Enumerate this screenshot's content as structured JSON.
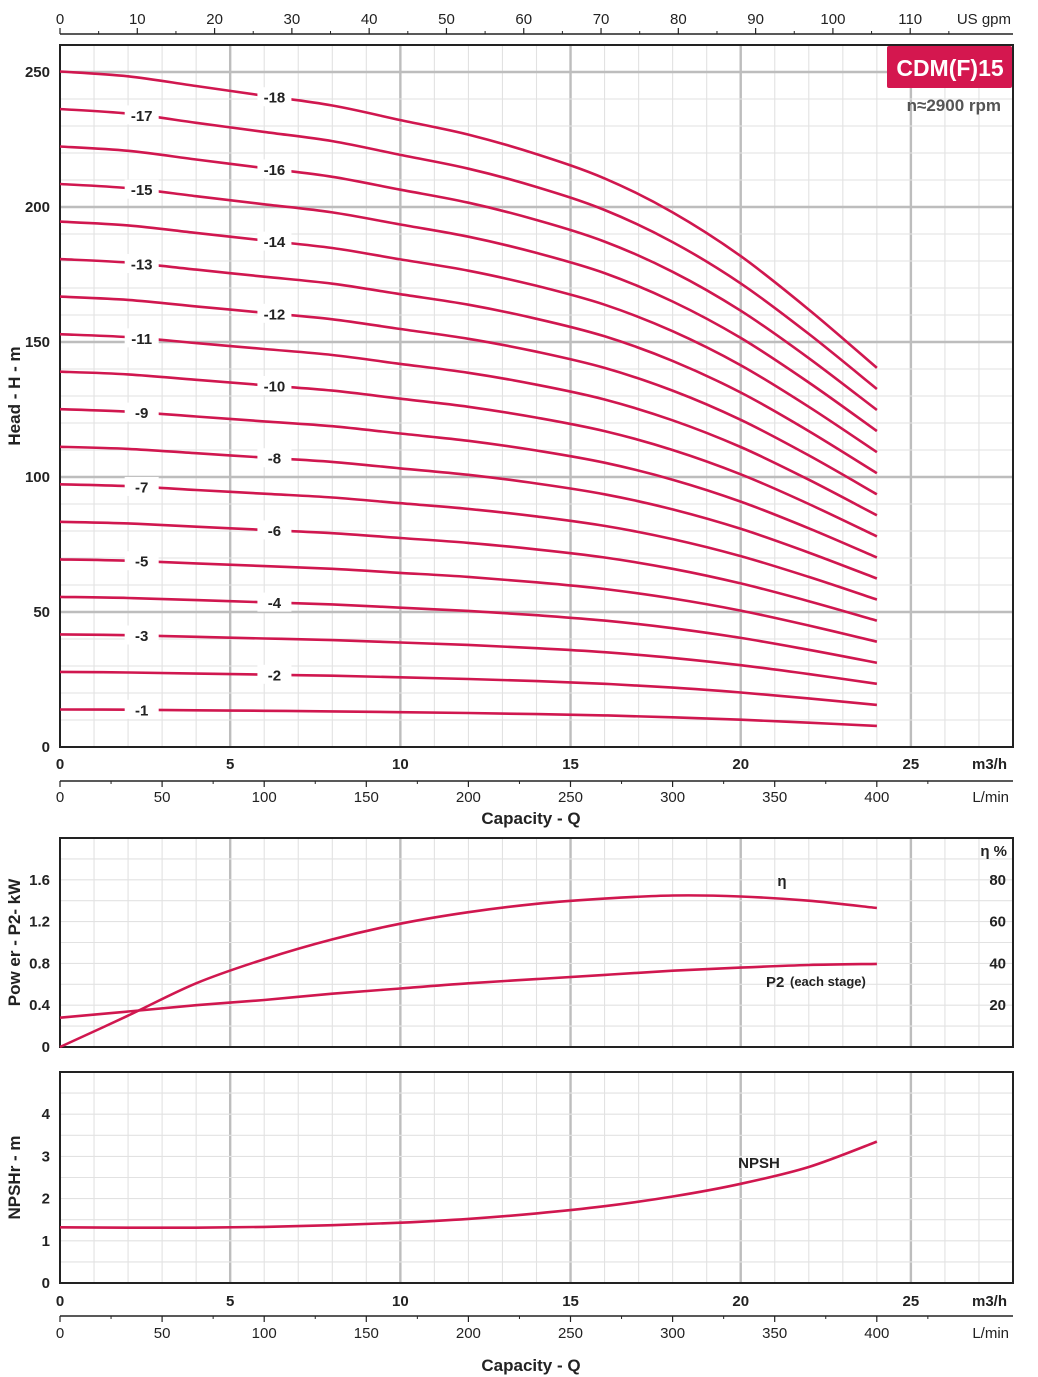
{
  "model_badge": "CDM(F)15",
  "speed_label": "n≈2900 rpm",
  "accent_color": "#d0174f",
  "badge_color": "#d4174f",
  "chart_data": [
    {
      "type": "line",
      "ylabel": "Head  -  H - m",
      "xlabel": "Capacity - Q",
      "x_unit": "m3/h",
      "xlim": [
        0,
        28
      ],
      "ylim": [
        0,
        260
      ],
      "xticks": [
        0,
        5,
        10,
        15,
        20,
        25
      ],
      "yticks": [
        0,
        50,
        100,
        150,
        200,
        250
      ],
      "top_axis": {
        "unit": "US gpm",
        "ticks": [
          0,
          10,
          20,
          30,
          40,
          50,
          60,
          70,
          80,
          90,
          100,
          110
        ],
        "lim": [
          0,
          123.3
        ]
      },
      "bottom_axis_2": {
        "unit": "L/min",
        "ticks": [
          0,
          50,
          100,
          150,
          200,
          250,
          300,
          350,
          400
        ],
        "lim": [
          0,
          466.7
        ]
      },
      "grid": true,
      "single_stage_head": {
        "x": [
          0,
          2,
          4,
          6,
          8,
          10,
          12,
          14,
          16,
          18,
          20,
          22,
          24
        ],
        "y": [
          13.9,
          13.8,
          13.6,
          13.4,
          13.2,
          12.9,
          12.6,
          12.2,
          11.7,
          11.0,
          10.1,
          9.0,
          7.8
        ]
      },
      "series": [
        {
          "name": "-1",
          "stages": 1
        },
        {
          "name": "-2",
          "stages": 2
        },
        {
          "name": "-3",
          "stages": 3
        },
        {
          "name": "-4",
          "stages": 4
        },
        {
          "name": "-5",
          "stages": 5
        },
        {
          "name": "-6",
          "stages": 6
        },
        {
          "name": "-7",
          "stages": 7
        },
        {
          "name": "-8",
          "stages": 8
        },
        {
          "name": "-9",
          "stages": 9
        },
        {
          "name": "-10",
          "stages": 10
        },
        {
          "name": "-11",
          "stages": 11
        },
        {
          "name": "-12",
          "stages": 12
        },
        {
          "name": "-13",
          "stages": 13
        },
        {
          "name": "-14",
          "stages": 14
        },
        {
          "name": "-15",
          "stages": 15
        },
        {
          "name": "-16",
          "stages": 16
        },
        {
          "name": "-17",
          "stages": 17
        },
        {
          "name": "-18",
          "stages": 18
        }
      ]
    },
    {
      "type": "line",
      "ylabel": "Pow er - P2- kW",
      "y2label": "η %",
      "xlim": [
        0,
        28
      ],
      "ylim": [
        0,
        2.0
      ],
      "yticks": [
        0,
        0.4,
        0.8,
        1.2,
        1.6
      ],
      "ytick_labels": [
        "0",
        "0.4",
        "0.8",
        "1.2",
        "1.6"
      ],
      "y2lim": [
        0,
        100
      ],
      "y2ticks": [
        20,
        40,
        60,
        80
      ],
      "grid": true,
      "series": [
        {
          "name": "η",
          "axis": "right",
          "x": [
            0,
            2,
            4,
            6,
            8,
            10,
            12,
            14,
            16,
            18,
            20,
            22,
            24
          ],
          "y": [
            0,
            15,
            30.5,
            42,
            51.5,
            59,
            64.5,
            68.5,
            71,
            72.5,
            72,
            70,
            66.5
          ]
        },
        {
          "name": "P2",
          "annotation": "(each stage)",
          "axis": "left",
          "x": [
            0,
            2,
            4,
            6,
            8,
            10,
            12,
            14,
            16,
            18,
            20,
            22,
            24
          ],
          "y": [
            0.28,
            0.34,
            0.4,
            0.45,
            0.51,
            0.56,
            0.61,
            0.65,
            0.69,
            0.73,
            0.76,
            0.785,
            0.795
          ]
        }
      ]
    },
    {
      "type": "line",
      "ylabel": "NPSHr - m",
      "xlabel": "Capacity - Q",
      "x_unit": "m3/h",
      "xlim": [
        0,
        28
      ],
      "ylim": [
        0,
        5
      ],
      "yticks": [
        0,
        1,
        2,
        3,
        4
      ],
      "xticks": [
        0,
        5,
        10,
        15,
        20,
        25
      ],
      "bottom_axis_2": {
        "unit": "L/min",
        "ticks": [
          0,
          50,
          100,
          150,
          200,
          250,
          300,
          350,
          400
        ],
        "lim": [
          0,
          466.7
        ]
      },
      "grid": true,
      "series": [
        {
          "name": "NPSH",
          "x": [
            0,
            2,
            4,
            6,
            8,
            10,
            12,
            14,
            16,
            18,
            20,
            22,
            24
          ],
          "y": [
            1.32,
            1.31,
            1.31,
            1.33,
            1.37,
            1.43,
            1.52,
            1.65,
            1.82,
            2.05,
            2.35,
            2.75,
            3.35
          ]
        }
      ]
    }
  ]
}
